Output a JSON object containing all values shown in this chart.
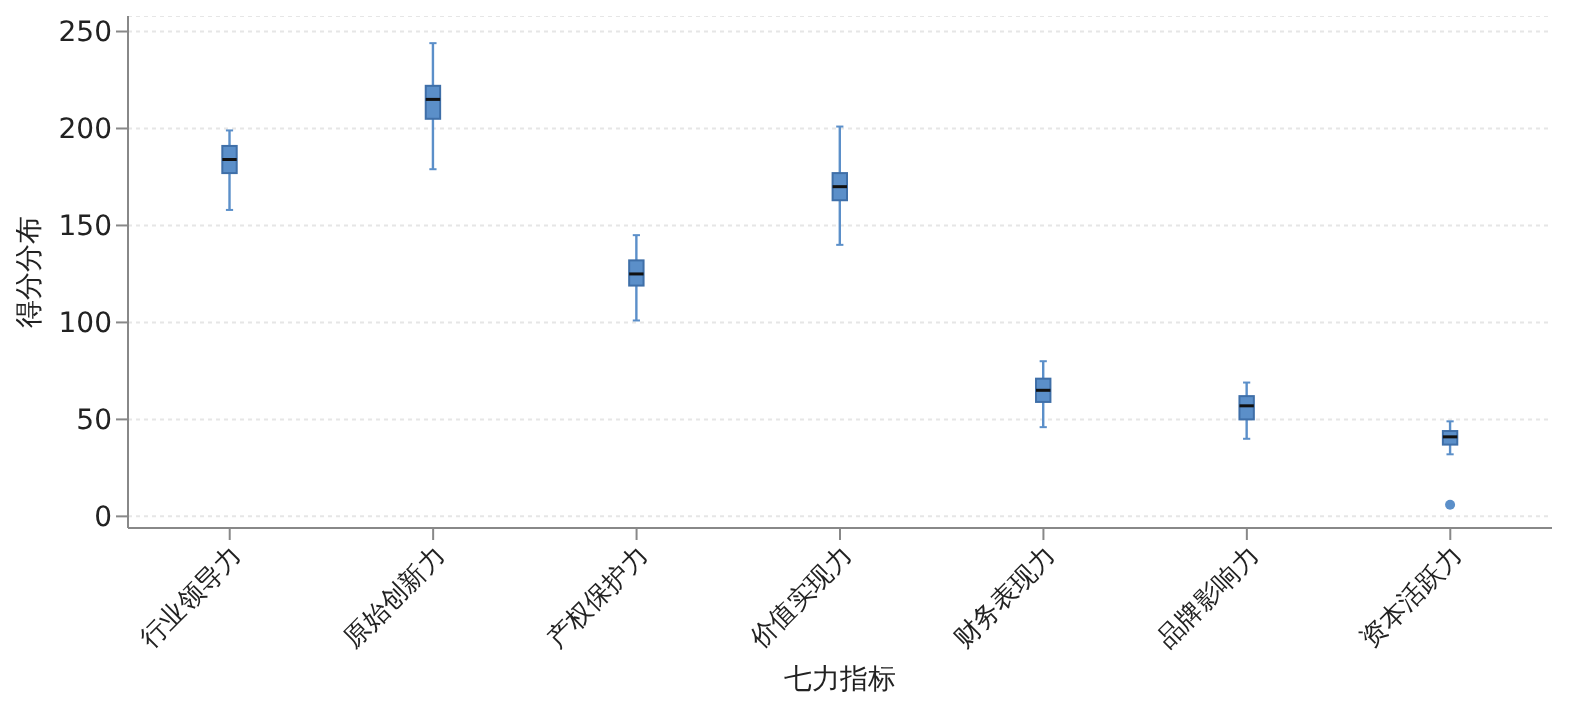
{
  "chart_data": {
    "type": "box",
    "xlabel": "七力指标",
    "ylabel": "得分分布",
    "categories": [
      "行业领导力",
      "原始创新力",
      "产权保护力",
      "价值实现力",
      "财务表现力",
      "品牌影响力",
      "资本活跃力"
    ],
    "boxes": [
      {
        "low": 158,
        "q1": 177,
        "median": 184,
        "q3": 191,
        "high": 199
      },
      {
        "low": 179,
        "q1": 205,
        "median": 215,
        "q3": 222,
        "high": 244
      },
      {
        "low": 101,
        "q1": 119,
        "median": 125,
        "q3": 132,
        "high": 145
      },
      {
        "low": 140,
        "q1": 163,
        "median": 170,
        "q3": 177,
        "high": 201
      },
      {
        "low": 46,
        "q1": 59,
        "median": 65,
        "q3": 71,
        "high": 80
      },
      {
        "low": 40,
        "q1": 50,
        "median": 57,
        "q3": 62,
        "high": 69
      },
      {
        "low": 32,
        "q1": 37,
        "median": 41,
        "q3": 44,
        "high": 49,
        "outliers": [
          6
        ]
      }
    ],
    "color": "#5b8fc9",
    "ylim": [
      -6,
      258
    ],
    "yticks": [
      0,
      50,
      100,
      150,
      200,
      250
    ],
    "grid": "y"
  }
}
